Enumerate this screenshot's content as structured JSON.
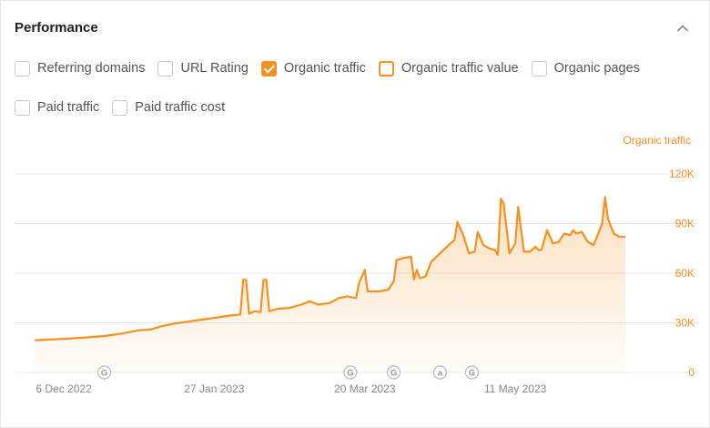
{
  "panel": {
    "title": "Performance"
  },
  "checkboxes": [
    {
      "label": "Referring domains",
      "checked": false,
      "style": "default"
    },
    {
      "label": "URL Rating",
      "checked": false,
      "style": "default"
    },
    {
      "label": "Organic traffic",
      "checked": true,
      "style": "checked"
    },
    {
      "label": "Organic traffic value",
      "checked": false,
      "style": "orange-outline"
    },
    {
      "label": "Organic pages",
      "checked": false,
      "style": "default"
    },
    {
      "label": "Paid traffic",
      "checked": false,
      "style": "default"
    },
    {
      "label": "Paid traffic cost",
      "checked": false,
      "style": "default"
    }
  ],
  "colors": {
    "accent": "#f7901e",
    "grid": "#e8e8e8",
    "axis_text": "#888888"
  },
  "chart_data": {
    "type": "area",
    "legend": "Organic traffic",
    "y_ticks": [
      "120K",
      "90K",
      "60K",
      "30K",
      "0"
    ],
    "ylim": [
      0,
      130000
    ],
    "x_ticks": [
      "6 Dec 2022",
      "27 Jan 2023",
      "20 Mar 2023",
      "11 May 2023"
    ],
    "markers": [
      {
        "date": "2022-12-20",
        "symbol": "G"
      },
      {
        "date": "2023-03-15",
        "symbol": "G"
      },
      {
        "date": "2023-03-30",
        "symbol": "G"
      },
      {
        "date": "2023-04-15",
        "symbol": "a"
      },
      {
        "date": "2023-04-26",
        "symbol": "G"
      }
    ],
    "series": [
      {
        "name": "Organic traffic",
        "points": [
          [
            "2022-11-26",
            19500
          ],
          [
            "2022-12-02",
            20000
          ],
          [
            "2022-12-08",
            20500
          ],
          [
            "2022-12-14",
            21200
          ],
          [
            "2022-12-20",
            22000
          ],
          [
            "2022-12-26",
            23500
          ],
          [
            "2023-01-01",
            25500
          ],
          [
            "2023-01-05",
            26000
          ],
          [
            "2023-01-09",
            28000
          ],
          [
            "2023-01-13",
            29500
          ],
          [
            "2023-01-17",
            30500
          ],
          [
            "2023-01-21",
            31500
          ],
          [
            "2023-01-25",
            32500
          ],
          [
            "2023-01-29",
            33500
          ],
          [
            "2023-02-02",
            34500
          ],
          [
            "2023-02-05",
            35000
          ],
          [
            "2023-02-06",
            56000
          ],
          [
            "2023-02-07",
            56000
          ],
          [
            "2023-02-08",
            35500
          ],
          [
            "2023-02-10",
            37000
          ],
          [
            "2023-02-12",
            36500
          ],
          [
            "2023-02-13",
            56000
          ],
          [
            "2023-02-14",
            56000
          ],
          [
            "2023-02-15",
            37000
          ],
          [
            "2023-02-18",
            38500
          ],
          [
            "2023-02-22",
            39000
          ],
          [
            "2023-02-26",
            41000
          ],
          [
            "2023-03-01",
            43000
          ],
          [
            "2023-03-04",
            41000
          ],
          [
            "2023-03-08",
            42000
          ],
          [
            "2023-03-11",
            45000
          ],
          [
            "2023-03-14",
            46000
          ],
          [
            "2023-03-17",
            45000
          ],
          [
            "2023-03-18",
            54000
          ],
          [
            "2023-03-20",
            62000
          ],
          [
            "2023-03-21",
            49000
          ],
          [
            "2023-03-25",
            49000
          ],
          [
            "2023-03-28",
            50000
          ],
          [
            "2023-03-30",
            55000
          ],
          [
            "2023-03-31",
            68000
          ],
          [
            "2023-04-02",
            69000
          ],
          [
            "2023-04-05",
            70000
          ],
          [
            "2023-04-06",
            56000
          ],
          [
            "2023-04-07",
            62000
          ],
          [
            "2023-04-08",
            57000
          ],
          [
            "2023-04-10",
            58000
          ],
          [
            "2023-04-12",
            67000
          ],
          [
            "2023-04-15",
            72000
          ],
          [
            "2023-04-18",
            77000
          ],
          [
            "2023-04-20",
            80000
          ],
          [
            "2023-04-21",
            91000
          ],
          [
            "2023-04-23",
            83000
          ],
          [
            "2023-04-25",
            72000
          ],
          [
            "2023-04-27",
            73000
          ],
          [
            "2023-04-28",
            85000
          ],
          [
            "2023-04-30",
            77000
          ],
          [
            "2023-05-02",
            75000
          ],
          [
            "2023-05-04",
            74000
          ],
          [
            "2023-05-05",
            71000
          ],
          [
            "2023-05-06",
            105000
          ],
          [
            "2023-05-07",
            102000
          ],
          [
            "2023-05-09",
            72000
          ],
          [
            "2023-05-11",
            78000
          ],
          [
            "2023-05-12",
            100000
          ],
          [
            "2023-05-14",
            73000
          ],
          [
            "2023-05-16",
            73000
          ],
          [
            "2023-05-18",
            76000
          ],
          [
            "2023-05-19",
            74000
          ],
          [
            "2023-05-20",
            74000
          ],
          [
            "2023-05-22",
            86000
          ],
          [
            "2023-05-24",
            78000
          ],
          [
            "2023-05-26",
            79000
          ],
          [
            "2023-05-28",
            84000
          ],
          [
            "2023-05-30",
            83000
          ],
          [
            "2023-05-31",
            86000
          ],
          [
            "2023-06-01",
            84000
          ],
          [
            "2023-06-03",
            85000
          ],
          [
            "2023-06-05",
            79000
          ],
          [
            "2023-06-07",
            77000
          ],
          [
            "2023-06-08",
            81000
          ],
          [
            "2023-06-10",
            90000
          ],
          [
            "2023-06-11",
            106000
          ],
          [
            "2023-06-12",
            93000
          ],
          [
            "2023-06-14",
            84000
          ],
          [
            "2023-06-16",
            82000
          ],
          [
            "2023-06-18",
            82000
          ]
        ]
      }
    ]
  }
}
